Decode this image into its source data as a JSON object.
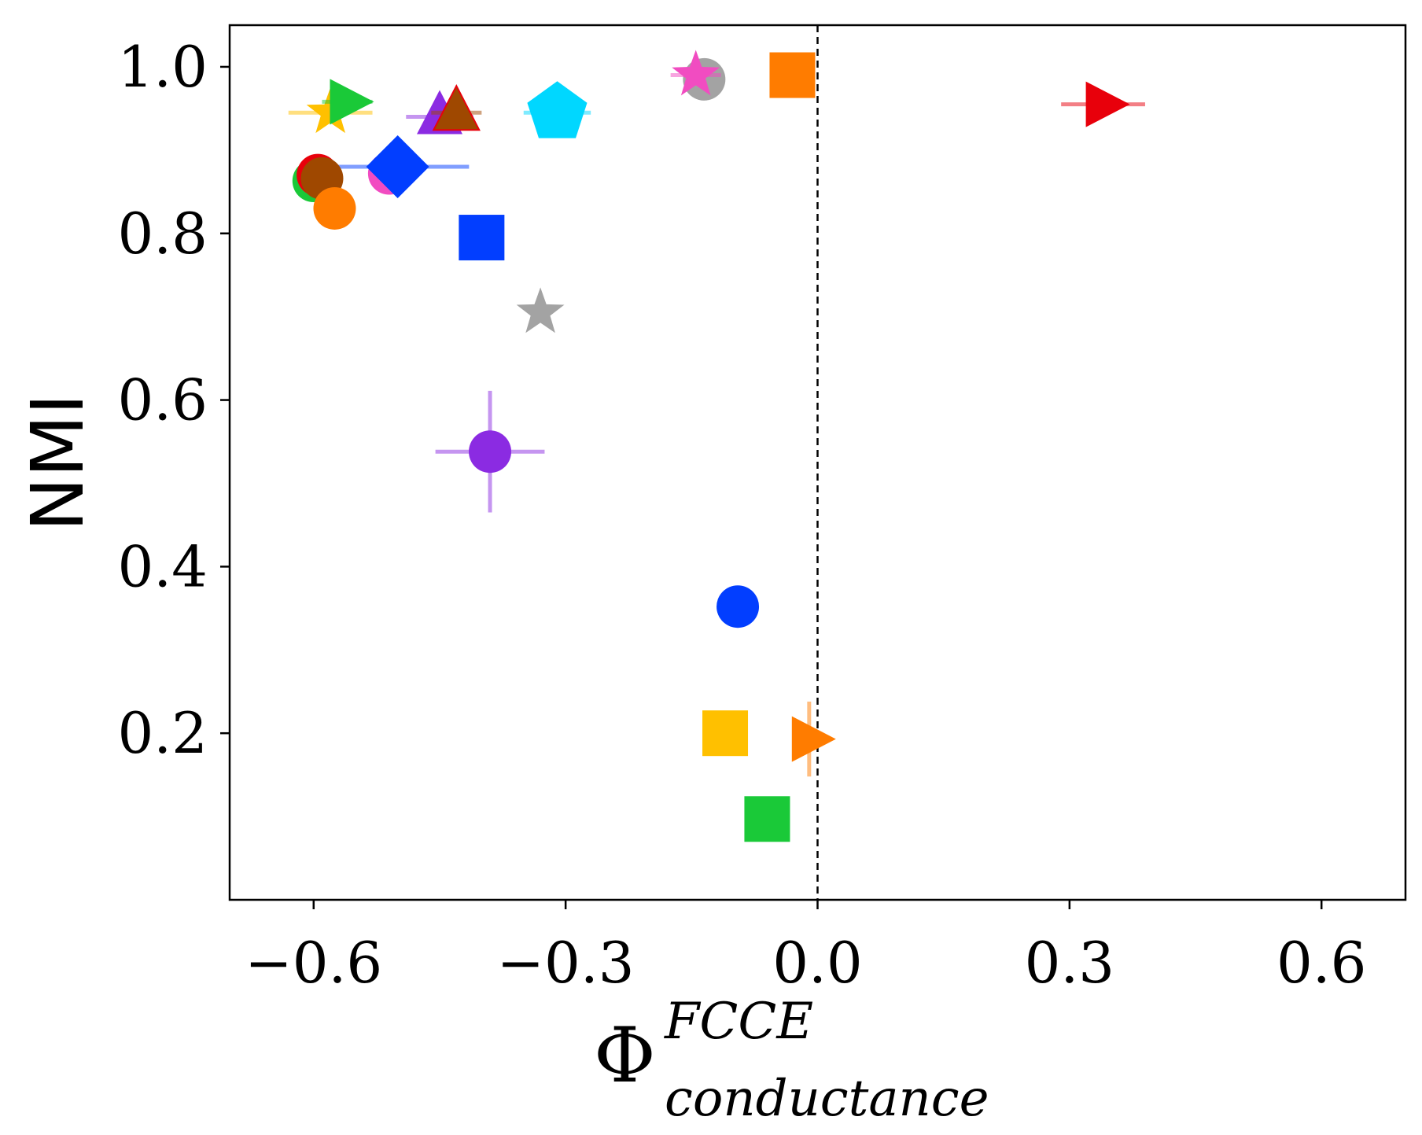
{
  "chart_data": {
    "type": "scatter",
    "title": "",
    "xlabel": {
      "symbol": "Φ",
      "superscript": "FCCE",
      "subscript": "conductance"
    },
    "ylabel": "NMI",
    "xlim": [
      -0.7,
      0.7
    ],
    "ylim": [
      0.0,
      1.05
    ],
    "xticks": [
      -0.6,
      -0.3,
      0.0,
      0.3,
      0.6
    ],
    "xtick_labels": [
      "−0.6",
      "−0.3",
      "0.0",
      "0.3",
      "0.6"
    ],
    "yticks": [
      0.2,
      0.4,
      0.6,
      0.8,
      1.0
    ],
    "ytick_labels": [
      "0.2",
      "0.4",
      "0.6",
      "0.8",
      "1.0"
    ],
    "grid": false,
    "reference_line": {
      "x": 0.0,
      "style": "dashed",
      "color": "#000000"
    },
    "points": [
      {
        "marker": "star",
        "color": "#ffc000",
        "x": -0.58,
        "y": 0.945,
        "xerr": 0.05
      },
      {
        "marker": "triangle-right",
        "color": "#1ac938",
        "x": -0.56,
        "y": 0.958,
        "xerr": 0.03
      },
      {
        "marker": "triangle-up",
        "color": "#8b2be2",
        "x": -0.45,
        "y": 0.94,
        "xerr": 0.04
      },
      {
        "marker": "triangle-up",
        "color": "#9f4800",
        "edge": "#e8000b",
        "x": -0.43,
        "y": 0.945,
        "xerr": 0.03
      },
      {
        "marker": "pentagon",
        "color": "#00d7ff",
        "x": -0.31,
        "y": 0.945,
        "xerr": 0.04
      },
      {
        "marker": "circle",
        "color": "#a3a3a3",
        "x": -0.135,
        "y": 0.985
      },
      {
        "marker": "star",
        "color": "#f14cc1",
        "x": -0.145,
        "y": 0.99,
        "xerr": 0.03
      },
      {
        "marker": "square",
        "color": "#ff7c00",
        "x": -0.03,
        "y": 0.99
      },
      {
        "marker": "triangle-right",
        "color": "#e8000b",
        "x": 0.34,
        "y": 0.955,
        "xerr": 0.05
      },
      {
        "marker": "circle",
        "color": "#f14cc1",
        "x": -0.51,
        "y": 0.872
      },
      {
        "marker": "diamond",
        "color": "#023eff",
        "x": -0.5,
        "y": 0.88,
        "xerr": 0.085
      },
      {
        "marker": "circle",
        "color": "#1ac938",
        "x": -0.6,
        "y": 0.863
      },
      {
        "marker": "circle",
        "color": "#e8000b",
        "x": -0.595,
        "y": 0.87
      },
      {
        "marker": "circle",
        "color": "#9f4800",
        "x": -0.59,
        "y": 0.866
      },
      {
        "marker": "circle",
        "color": "#ff7c00",
        "x": -0.575,
        "y": 0.83
      },
      {
        "marker": "square",
        "color": "#023eff",
        "x": -0.4,
        "y": 0.795
      },
      {
        "marker": "star",
        "color": "#a3a3a3",
        "x": -0.33,
        "y": 0.705
      },
      {
        "marker": "circle",
        "color": "#8b2be2",
        "x": -0.39,
        "y": 0.538,
        "xerr": 0.065,
        "yerr": 0.073
      },
      {
        "marker": "circle",
        "color": "#023eff",
        "x": -0.095,
        "y": 0.352
      },
      {
        "marker": "square",
        "color": "#ffc000",
        "x": -0.11,
        "y": 0.2
      },
      {
        "marker": "triangle-right",
        "color": "#ff7c00",
        "x": -0.01,
        "y": 0.193,
        "yerr": 0.045
      },
      {
        "marker": "square",
        "color": "#1ac938",
        "x": -0.06,
        "y": 0.097
      }
    ]
  }
}
